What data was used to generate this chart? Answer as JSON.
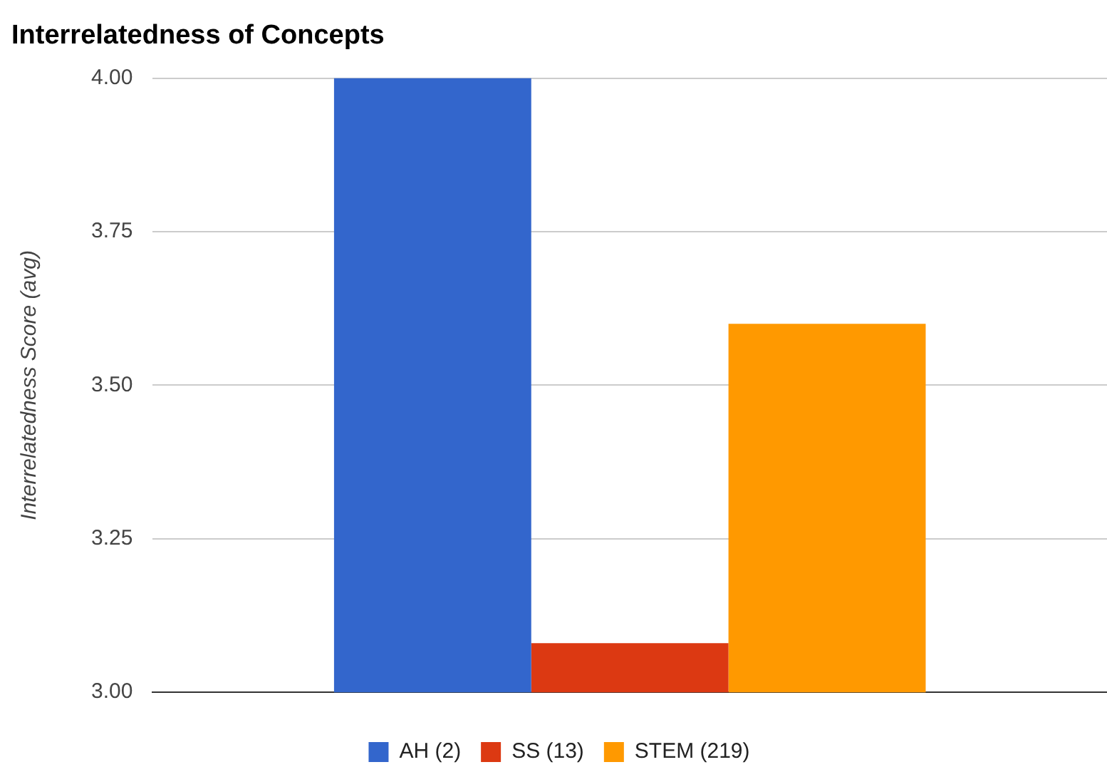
{
  "chart_data": {
    "type": "bar",
    "title": "Interrelatedness of Concepts",
    "ylabel": "Interrelatedness Score (avg)",
    "categories": [
      null
    ],
    "series": [
      {
        "name": "AH (2)",
        "color": "#3366cc",
        "values": [
          4.0
        ]
      },
      {
        "name": "SS (13)",
        "color": "#dc3912",
        "values": [
          3.08
        ]
      },
      {
        "name": "STEM (219)",
        "color": "#ff9900",
        "values": [
          3.6
        ]
      }
    ],
    "ylim": [
      3.0,
      4.0
    ],
    "yticks": [
      {
        "value": 3.0,
        "label": "3.00"
      },
      {
        "value": 3.25,
        "label": "3.25"
      },
      {
        "value": 3.5,
        "label": "3.50"
      },
      {
        "value": 3.75,
        "label": "3.75"
      },
      {
        "value": 4.0,
        "label": "4.00"
      }
    ],
    "grid": "y",
    "legend": "bottom"
  }
}
